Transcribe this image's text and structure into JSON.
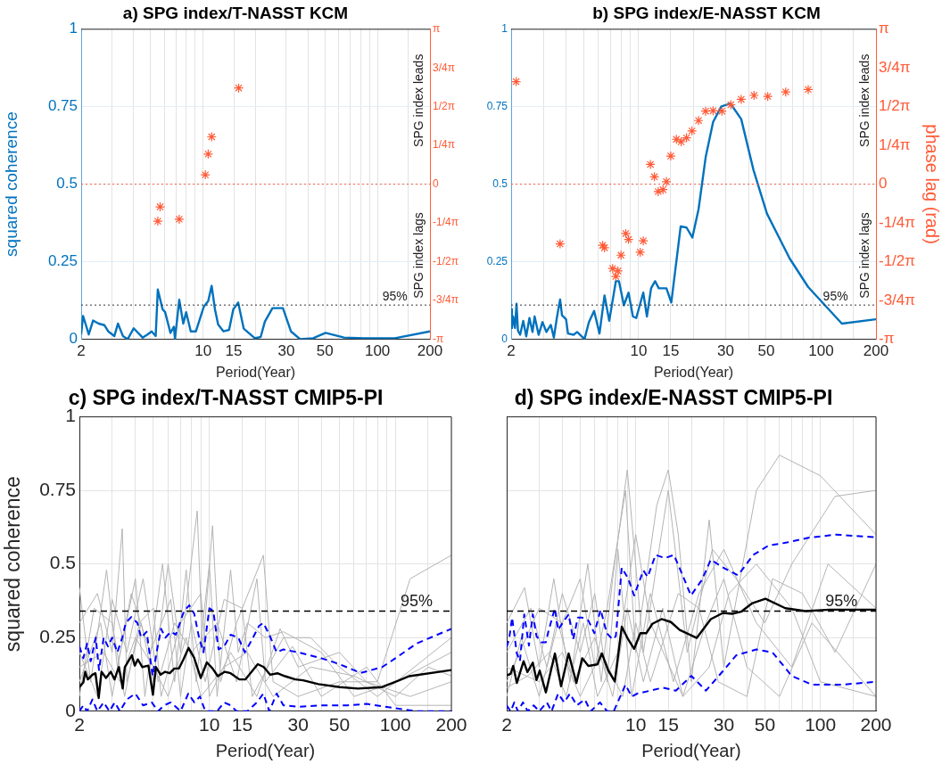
{
  "chart_data": [
    {
      "type": "line",
      "title": "a) SPG index/T-NASST KCM",
      "xlabel": "Period(Year)",
      "ylabel": "squared coherence",
      "log": "x",
      "grid": true,
      "legend": false,
      "xlim": [
        2,
        200
      ],
      "ylim": [
        0,
        1
      ],
      "y2lim": [
        -3.1416,
        3.1416
      ],
      "xticks": [
        2,
        {
          "value": 3,
          "label": null
        },
        {
          "value": 4,
          "label": null
        },
        {
          "value": 5,
          "label": null
        },
        {
          "value": 6,
          "label": null
        },
        {
          "value": 7,
          "label": null
        },
        {
          "value": 8,
          "label": null
        },
        {
          "value": 9,
          "label": null
        },
        10,
        15,
        {
          "value": 20,
          "label": null
        },
        30,
        {
          "value": 40,
          "label": null
        },
        50,
        {
          "value": 60,
          "label": null
        },
        {
          "value": 70,
          "label": null
        },
        {
          "value": 80,
          "label": null
        },
        {
          "value": 90,
          "label": null
        },
        100,
        {
          "value": 150,
          "label": null
        },
        200
      ],
      "yticks": [
        0,
        0.25,
        0.5,
        0.75,
        1
      ],
      "y2ticks": [
        {
          "value": -3.1416,
          "label": "-π"
        },
        {
          "value": -2.3562,
          "label": "-3/4π"
        },
        {
          "value": -1.5708,
          "label": "-1/2π"
        },
        {
          "value": -0.7854,
          "label": "-1/4π"
        },
        {
          "value": 0,
          "label": "0"
        },
        {
          "value": 0.7854,
          "label": "1/4π"
        },
        {
          "value": 1.5708,
          "label": "1/2π"
        },
        {
          "value": 2.3562,
          "label": "3/4π"
        },
        {
          "value": 3.1416,
          "label": "π"
        }
      ],
      "series": [
        {
          "type": "line",
          "color": "#0072bd",
          "x": [
            2.0,
            2.05,
            2.13,
            2.21,
            2.34,
            2.52,
            2.72,
            2.86,
            3.1,
            3.25,
            3.47,
            3.7,
            4.0,
            4.5,
            4.8,
            5.07,
            5.35,
            5.5,
            5.86,
            6.06,
            6.5,
            6.8,
            6.9,
            7.3,
            7.7,
            8.0,
            8.5,
            9.1,
            10.1,
            10.7,
            11.2,
            11.7,
            12.2,
            13.1,
            14.1,
            14.9,
            15.9,
            17.1,
            19.8,
            21.4,
            22.6,
            25.0,
            28.7,
            31.9,
            36.0,
            42.8,
            50.4,
            64.3,
            83.9,
            126,
            200
          ],
          "values": [
            0.015,
            0.075,
            0.045,
            0.015,
            0.06,
            0.05,
            0.045,
            0.025,
            0.01,
            0.05,
            0.01,
            0.0,
            0.035,
            0.005,
            0.015,
            0.025,
            0.01,
            0.16,
            0.096,
            0.087,
            0.02,
            0.04,
            0.0,
            0.127,
            0.05,
            0.087,
            0.025,
            0.025,
            0.105,
            0.123,
            0.172,
            0.096,
            0.047,
            0.025,
            0.03,
            0.096,
            0.118,
            0.034,
            0.003,
            0.007,
            0.056,
            0.1,
            0.1,
            0.025,
            0.0,
            0.003,
            0.02,
            0.005,
            0.003,
            0.003,
            0.025
          ]
        },
        {
          "type": "scatter",
          "axis": "y2",
          "marker": "cross",
          "color": "#ff5a36",
          "x": [
            5.5,
            5.67,
            7.3,
            10.3,
            10.7,
            11.2,
            16.0
          ],
          "values": [
            -0.75,
            -0.46,
            -0.71,
            0.19,
            0.61,
            0.96,
            1.95
          ]
        }
      ],
      "ref_lines": [
        {
          "axis": "y",
          "value": 0.11,
          "line_style": "dotted",
          "color": "#333333"
        },
        {
          "axis": "y2",
          "value": 0,
          "line_style": "dotted",
          "color": "#ff5a36"
        }
      ],
      "annotations": [
        "SPG index leads",
        "SPG index lags",
        {
          "text": "95%",
          "x": 126,
          "y": 0.11
        }
      ]
    },
    {
      "type": "line",
      "title": "b) SPG index/E-NASST KCM",
      "xlabel": "Period(Year)",
      "y2label": "phase lag (rad)",
      "log": "x",
      "grid": true,
      "legend": false,
      "xlim": [
        2,
        200
      ],
      "ylim": [
        0,
        1
      ],
      "y2lim": [
        -3.1416,
        3.1416
      ],
      "xticks": [
        2,
        {
          "value": 3,
          "label": null
        },
        {
          "value": 4,
          "label": null
        },
        {
          "value": 5,
          "label": null
        },
        {
          "value": 6,
          "label": null
        },
        {
          "value": 7,
          "label": null
        },
        {
          "value": 8,
          "label": null
        },
        {
          "value": 9,
          "label": null
        },
        10,
        15,
        {
          "value": 20,
          "label": null
        },
        30,
        {
          "value": 40,
          "label": null
        },
        50,
        {
          "value": 60,
          "label": null
        },
        {
          "value": 70,
          "label": null
        },
        {
          "value": 80,
          "label": null
        },
        {
          "value": 90,
          "label": null
        },
        100,
        {
          "value": 150,
          "label": null
        },
        200
      ],
      "yticks": [
        0,
        0.25,
        0.5,
        0.75,
        1
      ],
      "y2ticks": [
        {
          "value": -3.1416,
          "label": "-π"
        },
        {
          "value": -2.3562,
          "label": "-3/4π"
        },
        {
          "value": -1.5708,
          "label": "-1/2π"
        },
        {
          "value": -0.7854,
          "label": "-1/4π"
        },
        {
          "value": 0,
          "label": "0"
        },
        {
          "value": 0.7854,
          "label": "1/4π"
        },
        {
          "value": 1.5708,
          "label": "1/2π"
        },
        {
          "value": 2.3562,
          "label": "3/4π"
        },
        {
          "value": 3.1416,
          "label": "π"
        }
      ],
      "series": [
        {
          "type": "line",
          "color": "#0072bd",
          "x": [
            2.0,
            2.02,
            2.05,
            2.1,
            2.14,
            2.18,
            2.24,
            2.33,
            2.42,
            2.52,
            2.62,
            2.69,
            2.83,
            2.97,
            3.12,
            3.3,
            3.43,
            3.56,
            3.71,
            3.8,
            4.0,
            4.1,
            4.4,
            4.6,
            5.05,
            5.34,
            5.7,
            6.1,
            6.5,
            6.9,
            7.5,
            7.8,
            8.3,
            8.8,
            9.3,
            9.7,
            10.6,
            11.1,
            11.7,
            12.3,
            12.9,
            14.2,
            15.1,
            17.0,
            18.3,
            19.7,
            21.3,
            23.3,
            25.6,
            28.4,
            31.9,
            36.5,
            42.6,
            50.5,
            67.3,
            85,
            130,
            200
          ],
          "values": [
            0.096,
            0.036,
            0.073,
            0.036,
            0.114,
            0.027,
            0.014,
            0.059,
            0.009,
            0.068,
            0.023,
            0.073,
            0.014,
            0.055,
            0.023,
            0.046,
            0.005,
            0.068,
            0.128,
            0.077,
            0.064,
            0.018,
            0.014,
            0.023,
            0.0,
            0.055,
            0.091,
            0.018,
            0.141,
            0.059,
            0.187,
            0.187,
            0.109,
            0.15,
            0.073,
            0.068,
            0.15,
            0.073,
            0.164,
            0.187,
            0.164,
            0.164,
            0.118,
            0.364,
            0.36,
            0.328,
            0.419,
            0.587,
            0.701,
            0.751,
            0.76,
            0.71,
            0.546,
            0.405,
            0.26,
            0.168,
            0.05,
            0.064
          ]
        },
        {
          "type": "scatter",
          "axis": "y2",
          "marker": "cross",
          "color": "#ff5a36",
          "x": [
            2.13,
            3.71,
            6.35,
            6.5,
            7.2,
            7.5,
            7.7,
            8.0,
            8.5,
            8.8,
            10.2,
            10.6,
            11.6,
            12.2,
            12.8,
            13.6,
            14.2,
            15.0,
            16.1,
            17.1,
            18.3,
            19.6,
            21.3,
            23.3,
            25.6,
            28.6,
            32,
            36.5,
            42.9,
            51,
            64,
            85
          ],
          "values": [
            2.08,
            -1.21,
            -1.24,
            -1.29,
            -1.71,
            -1.87,
            -1.76,
            -1.44,
            -1.0,
            -1.12,
            -1.38,
            -1.15,
            0.4,
            0.15,
            -0.15,
            -0.11,
            0.05,
            0.57,
            0.91,
            0.86,
            0.94,
            1.08,
            1.29,
            1.48,
            1.49,
            1.48,
            1.61,
            1.72,
            1.8,
            1.78,
            1.87,
            1.92
          ]
        }
      ],
      "ref_lines": [
        {
          "axis": "y",
          "value": 0.11,
          "line_style": "dotted",
          "color": "#333333"
        },
        {
          "axis": "y2",
          "value": 0,
          "line_style": "dotted",
          "color": "#ff5a36"
        }
      ],
      "annotations": [
        "SPG index leads",
        "SPG index lags",
        {
          "text": "95%",
          "x": 120,
          "y": 0.11
        }
      ]
    },
    {
      "type": "line",
      "title": "c) SPG index/T-NASST CMIP5-PI",
      "xlabel": "Period(Year)",
      "ylabel": "squared coherence",
      "log": "x",
      "grid": true,
      "legend": false,
      "xlim": [
        2,
        200
      ],
      "ylim": [
        0,
        1
      ],
      "xticks": [
        2,
        {
          "value": 3,
          "label": null
        },
        {
          "value": 4,
          "label": null
        },
        {
          "value": 5,
          "label": null
        },
        {
          "value": 6,
          "label": null
        },
        {
          "value": 7,
          "label": null
        },
        {
          "value": 8,
          "label": null
        },
        {
          "value": 9,
          "label": null
        },
        10,
        15,
        {
          "value": 20,
          "label": null
        },
        30,
        {
          "value": 40,
          "label": null
        },
        50,
        {
          "value": 60,
          "label": null
        },
        {
          "value": 70,
          "label": null
        },
        {
          "value": 80,
          "label": null
        },
        {
          "value": 90,
          "label": null
        },
        100,
        {
          "value": 150,
          "label": null
        },
        200
      ],
      "yticks": [
        0,
        0.25,
        0.5,
        0.75,
        1
      ],
      "series": [
        {
          "type": "line",
          "color": "#b4b4b4",
          "x": [
            2,
            2.5,
            3,
            3.4,
            3.6,
            4.3,
            5,
            6,
            7,
            8.6,
            9.2,
            10.4,
            11.5,
            14,
            19.5,
            22,
            30,
            50,
            80,
            120,
            200
          ],
          "values": [
            0.3,
            0.4,
            0.2,
            0.62,
            0.1,
            0.3,
            0.1,
            0.5,
            0.2,
            0.68,
            0.2,
            0.63,
            0.1,
            0.3,
            0.53,
            0.1,
            0.05,
            0.1,
            0.1,
            0.45,
            0.53
          ]
        },
        {
          "type": "line",
          "color": "#b4b4b4",
          "x": [
            2,
            2.3,
            2.8,
            3.2,
            4,
            4.5,
            5.6,
            6.5,
            7.5,
            8.5,
            10,
            11,
            13,
            14.3,
            16,
            20,
            25,
            40,
            60,
            100,
            200
          ],
          "values": [
            0.42,
            0.1,
            0.48,
            0.15,
            0.45,
            0.05,
            0.5,
            0.1,
            0.48,
            0.1,
            0.5,
            0.05,
            0.48,
            0.2,
            0.3,
            0.25,
            0.27,
            0.2,
            0.05,
            0.1,
            0.2
          ]
        },
        {
          "type": "line",
          "color": "#b4b4b4",
          "x": [
            2,
            2.6,
            3,
            3.8,
            4.8,
            6.2,
            7,
            8,
            9.5,
            12,
            15,
            17,
            25,
            35,
            50,
            80,
            200
          ],
          "values": [
            0.1,
            0.3,
            0.05,
            0.4,
            0.2,
            0.38,
            0.05,
            0.3,
            0.1,
            0.38,
            0.35,
            0.05,
            0.25,
            0.25,
            0.15,
            0.05,
            0.25
          ]
        },
        {
          "type": "line",
          "color": "#b4b4b4",
          "x": [
            2,
            2.4,
            3,
            3.5,
            4.2,
            5,
            5.5,
            7,
            9,
            10,
            13,
            18,
            24,
            30,
            50,
            70,
            120,
            200
          ],
          "values": [
            0.05,
            0.35,
            0.3,
            0.05,
            0.3,
            0.35,
            0.05,
            0.3,
            0.4,
            0.05,
            0.2,
            0.05,
            0.28,
            0.15,
            0.2,
            0.1,
            0.05,
            0.1
          ]
        },
        {
          "type": "line",
          "color": "#b4b4b4",
          "x": [
            2,
            2.5,
            3,
            3.6,
            4.4,
            5.3,
            6.5,
            8,
            11,
            14,
            18,
            20,
            28,
            40,
            70,
            100,
            200
          ],
          "values": [
            0.2,
            0.05,
            0.38,
            0.2,
            0.45,
            0.1,
            0.3,
            0.2,
            0.3,
            0.1,
            0.45,
            0.1,
            0.22,
            0.05,
            0.15,
            0.02,
            0.02
          ]
        },
        {
          "type": "line",
          "color": "#b4b4b4",
          "x": [
            2,
            2.7,
            3.3,
            4,
            5,
            6,
            7.5,
            9,
            12,
            16,
            22,
            35,
            60,
            100,
            150,
            200
          ],
          "values": [
            0.15,
            0.2,
            0.1,
            0.25,
            0.15,
            0.05,
            0.25,
            0.05,
            0.15,
            0.2,
            0.05,
            0.15,
            0.12,
            0.05,
            0.15,
            0.12
          ]
        },
        {
          "type": "line",
          "color": "#0000ff",
          "line_style": "dashed",
          "x": [
            2.0,
            2.1,
            2.2,
            2.3,
            2.45,
            2.55,
            2.7,
            2.85,
            3.0,
            3.2,
            3.4,
            3.55,
            3.8,
            4.1,
            4.3,
            4.6,
            4.95,
            5.2,
            5.5,
            5.8,
            6.2,
            6.6,
            7.3,
            7.8,
            8.3,
            8.8,
            9.3,
            10,
            10.5,
            11.2,
            12,
            13,
            14.3,
            15.5,
            16.5,
            18.5,
            19.5,
            21,
            23,
            25,
            30,
            40,
            50,
            65,
            85,
            100,
            130,
            200
          ],
          "values": [
            0.22,
            0.18,
            0.23,
            0.17,
            0.25,
            0.14,
            0.25,
            0.22,
            0.25,
            0.2,
            0.25,
            0.3,
            0.32,
            0.3,
            0.25,
            0.27,
            0.12,
            0.2,
            0.28,
            0.25,
            0.27,
            0.26,
            0.34,
            0.36,
            0.33,
            0.25,
            0.2,
            0.35,
            0.34,
            0.21,
            0.22,
            0.26,
            0.25,
            0.2,
            0.23,
            0.29,
            0.3,
            0.26,
            0.2,
            0.21,
            0.2,
            0.18,
            0.16,
            0.13,
            0.15,
            0.18,
            0.23,
            0.28
          ]
        },
        {
          "type": "line",
          "color": "#0000ff",
          "line_style": "dashed",
          "x": [
            2.0,
            2.1,
            2.2,
            2.35,
            2.5,
            2.7,
            2.9,
            3.1,
            3.3,
            3.6,
            4.0,
            4.4,
            4.9,
            5.3,
            5.7,
            6.2,
            7,
            7.7,
            8.3,
            8.9,
            9.5,
            11,
            12,
            13,
            14,
            16,
            18,
            19.5,
            21,
            23,
            25,
            30,
            40,
            55,
            70,
            100,
            130,
            200
          ],
          "values": [
            0.0,
            0.02,
            0.0,
            0.04,
            0.0,
            0.03,
            0.0,
            0.03,
            0.0,
            0.04,
            0.06,
            0.02,
            0.03,
            0.0,
            0.02,
            0.03,
            0.0,
            0.06,
            0.03,
            0.05,
            0.0,
            0.0,
            0.03,
            0.02,
            0.0,
            0.0,
            0.03,
            0.06,
            0.0,
            0.06,
            0.02,
            0.015,
            0.02,
            0.02,
            0.025,
            0.01,
            0.0,
            0.0
          ]
        },
        {
          "type": "line",
          "color": "#000000",
          "x": [
            2.0,
            2.1,
            2.15,
            2.22,
            2.35,
            2.44,
            2.54,
            2.63,
            2.78,
            2.95,
            3.09,
            3.26,
            3.42,
            3.51,
            3.83,
            3.97,
            4.12,
            4.36,
            4.7,
            4.97,
            5.16,
            5.47,
            5.78,
            6.12,
            6.48,
            6.85,
            7.25,
            7.73,
            8.27,
            8.98,
            9.69,
            10.4,
            11.1,
            12.1,
            13.0,
            14.5,
            15.6,
            18.2,
            19.6,
            21.2,
            23.2,
            25.5,
            29,
            31.9,
            38.5,
            50.2,
            62.9,
            84.8,
            98.5,
            118.7,
            200
          ],
          "values": [
            0.082,
            0.098,
            0.134,
            0.108,
            0.124,
            0.129,
            0.045,
            0.134,
            0.113,
            0.134,
            0.108,
            0.15,
            0.077,
            0.15,
            0.19,
            0.155,
            0.176,
            0.15,
            0.155,
            0.056,
            0.15,
            0.124,
            0.134,
            0.129,
            0.145,
            0.145,
            0.176,
            0.215,
            0.182,
            0.113,
            0.166,
            0.145,
            0.119,
            0.134,
            0.129,
            0.108,
            0.108,
            0.16,
            0.15,
            0.124,
            0.129,
            0.119,
            0.108,
            0.105,
            0.092,
            0.082,
            0.077,
            0.082,
            0.098,
            0.119,
            0.14
          ]
        }
      ],
      "ref_lines": [
        {
          "axis": "y",
          "value": 0.34,
          "line_style": "dashed",
          "color": "#000000"
        }
      ],
      "annotations": [
        {
          "text": "95%",
          "x": 130,
          "y": 0.34
        }
      ]
    },
    {
      "type": "line",
      "title": "d) SPG index/E-NASST CMIP5-PI",
      "xlabel": "Period(Year)",
      "log": "x",
      "grid": true,
      "legend": false,
      "tick_labels": "x",
      "xlim": [
        2,
        200
      ],
      "ylim": [
        0,
        1
      ],
      "xticks": [
        2,
        {
          "value": 3,
          "label": null
        },
        {
          "value": 4,
          "label": null
        },
        {
          "value": 5,
          "label": null
        },
        {
          "value": 6,
          "label": null
        },
        {
          "value": 7,
          "label": null
        },
        {
          "value": 8,
          "label": null
        },
        {
          "value": 9,
          "label": null
        },
        10,
        15,
        {
          "value": 20,
          "label": null
        },
        30,
        {
          "value": 40,
          "label": null
        },
        50,
        {
          "value": 60,
          "label": null
        },
        {
          "value": 70,
          "label": null
        },
        {
          "value": 80,
          "label": null
        },
        {
          "value": 90,
          "label": null
        },
        100,
        {
          "value": 150,
          "label": null
        },
        200
      ],
      "yticks": [
        0,
        0.25,
        0.5,
        0.75,
        1
      ],
      "series": [
        {
          "type": "line",
          "color": "#b4b4b4",
          "x": [
            2,
            3,
            4,
            5,
            6,
            7,
            8.8,
            10,
            13,
            15,
            17,
            20,
            25,
            30,
            45,
            60,
            100,
            200
          ],
          "values": [
            0.1,
            0.35,
            0.3,
            0.45,
            0.15,
            0.35,
            0.75,
            0.2,
            0.7,
            0.82,
            0.6,
            0.1,
            0.65,
            0.15,
            0.75,
            0.87,
            0.8,
            0.6
          ]
        },
        {
          "type": "line",
          "color": "#b4b4b4",
          "x": [
            2,
            2.5,
            3,
            3.6,
            4.4,
            5.5,
            6.5,
            7.5,
            9,
            11,
            13,
            15,
            19,
            26,
            35,
            50,
            70,
            120,
            200
          ],
          "values": [
            0.3,
            0.42,
            0.15,
            0.45,
            0.1,
            0.5,
            0.1,
            0.45,
            0.82,
            0.2,
            0.5,
            0.75,
            0.2,
            0.55,
            0.45,
            0.3,
            0.5,
            0.73,
            0.75
          ]
        },
        {
          "type": "line",
          "color": "#b4b4b4",
          "x": [
            2,
            2.7,
            3.3,
            4,
            5,
            6,
            7,
            8,
            9.5,
            12,
            16,
            22,
            30,
            45,
            70,
            110,
            200
          ],
          "values": [
            0.2,
            0.35,
            0.15,
            0.4,
            0.2,
            0.4,
            0.1,
            0.55,
            0.05,
            0.4,
            0.1,
            0.4,
            0.55,
            0.3,
            0.15,
            0.5,
            0.35
          ]
        },
        {
          "type": "line",
          "color": "#b4b4b4",
          "x": [
            2,
            2.4,
            3,
            3.8,
            4.6,
            6,
            7.5,
            9,
            11,
            14,
            18,
            24,
            30,
            40,
            60,
            90,
            200
          ],
          "values": [
            0.05,
            0.25,
            0.05,
            0.3,
            0.1,
            0.25,
            0.05,
            0.35,
            0.1,
            0.35,
            0.05,
            0.3,
            0.45,
            0.15,
            0.05,
            0.3,
            0.05
          ]
        },
        {
          "type": "line",
          "color": "#b4b4b4",
          "x": [
            2,
            3,
            4,
            5,
            6.5,
            8.5,
            10,
            12,
            17,
            22,
            28,
            40,
            55,
            80,
            120,
            200
          ],
          "values": [
            0.15,
            0.1,
            0.2,
            0.05,
            0.2,
            0.05,
            0.3,
            0.1,
            0.4,
            0.35,
            0.1,
            0.05,
            0.45,
            0.4,
            0.2,
            0.5
          ]
        },
        {
          "type": "line",
          "color": "#b4b4b4",
          "x": [
            2,
            2.6,
            3.4,
            4.2,
            5.2,
            6.2,
            8,
            10,
            12,
            18,
            25,
            32,
            45,
            70,
            100,
            200
          ],
          "values": [
            0.08,
            0.12,
            0.2,
            0.05,
            0.3,
            0.05,
            0.2,
            0.6,
            0.3,
            0.05,
            0.15,
            0.4,
            0.5,
            0.35,
            0.1,
            0.05
          ]
        },
        {
          "type": "line",
          "color": "#0000ff",
          "line_style": "dashed",
          "x": [
            2.0,
            2.06,
            2.14,
            2.27,
            2.36,
            2.49,
            2.64,
            2.77,
            2.9,
            3.08,
            3.26,
            3.38,
            3.65,
            3.79,
            4.1,
            4.33,
            4.58,
            4.86,
            5.13,
            5.54,
            5.97,
            6.45,
            6.97,
            7.5,
            7.8,
            8.4,
            9.1,
            9.8,
            11.0,
            11.6,
            12.8,
            14.4,
            16.1,
            18.1,
            19.9,
            22.8,
            25.5,
            29.7,
            35.8,
            43.3,
            52.4,
            65.8,
            85.9,
            121,
            200
          ],
          "values": [
            0.218,
            0.244,
            0.318,
            0.196,
            0.17,
            0.329,
            0.223,
            0.329,
            0.255,
            0.234,
            0.234,
            0.276,
            0.35,
            0.276,
            0.308,
            0.329,
            0.244,
            0.318,
            0.318,
            0.308,
            0.265,
            0.345,
            0.265,
            0.244,
            0.255,
            0.488,
            0.451,
            0.393,
            0.478,
            0.456,
            0.531,
            0.52,
            0.531,
            0.456,
            0.393,
            0.446,
            0.515,
            0.488,
            0.462,
            0.531,
            0.563,
            0.573,
            0.589,
            0.6,
            0.591
          ]
        },
        {
          "type": "line",
          "color": "#0000ff",
          "line_style": "dashed",
          "x": [
            2.0,
            2.1,
            2.2,
            2.3,
            2.45,
            2.6,
            2.8,
            3.0,
            3.3,
            3.5,
            3.8,
            4.1,
            4.4,
            4.8,
            5.3,
            5.7,
            6.4,
            7.0,
            7.6,
            8.8,
            9.5,
            10.2,
            12,
            14,
            16.5,
            20,
            24,
            30,
            35,
            45,
            55,
            70,
            90,
            130,
            200
          ],
          "values": [
            0.02,
            0.0,
            0.03,
            0.0,
            0.03,
            0.0,
            0.02,
            0.0,
            0.03,
            0.0,
            0.06,
            0.03,
            0.06,
            0.02,
            0.04,
            0.0,
            0.03,
            0.0,
            0.0,
            0.09,
            0.05,
            0.06,
            0.07,
            0.08,
            0.07,
            0.12,
            0.07,
            0.14,
            0.19,
            0.21,
            0.2,
            0.12,
            0.09,
            0.09,
            0.1
          ]
        },
        {
          "type": "line",
          "color": "#000000",
          "x": [
            2.0,
            2.1,
            2.17,
            2.27,
            2.47,
            2.59,
            2.77,
            2.9,
            3.02,
            3.26,
            3.65,
            3.94,
            4.33,
            4.77,
            5.13,
            5.54,
            6.2,
            6.56,
            7.1,
            7.7,
            8.4,
            9.1,
            9.8,
            10.6,
            11.4,
            12.3,
            13.8,
            15.5,
            17.3,
            21.4,
            25.5,
            29.7,
            33.2,
            37.2,
            42.5,
            50.4,
            64.6,
            82.9,
            111.8,
            200
          ],
          "values": [
            0.122,
            0.127,
            0.154,
            0.096,
            0.17,
            0.133,
            0.165,
            0.106,
            0.138,
            0.064,
            0.196,
            0.085,
            0.196,
            0.096,
            0.18,
            0.154,
            0.159,
            0.196,
            0.138,
            0.101,
            0.287,
            0.244,
            0.212,
            0.265,
            0.265,
            0.297,
            0.313,
            0.303,
            0.276,
            0.249,
            0.313,
            0.334,
            0.331,
            0.338,
            0.366,
            0.382,
            0.35,
            0.34,
            0.345,
            0.345
          ]
        }
      ],
      "ref_lines": [
        {
          "axis": "y",
          "value": 0.34,
          "line_style": "dashed",
          "color": "#000000"
        }
      ],
      "annotations": [
        {
          "text": "95%",
          "x": 130,
          "y": 0.34
        }
      ]
    }
  ]
}
